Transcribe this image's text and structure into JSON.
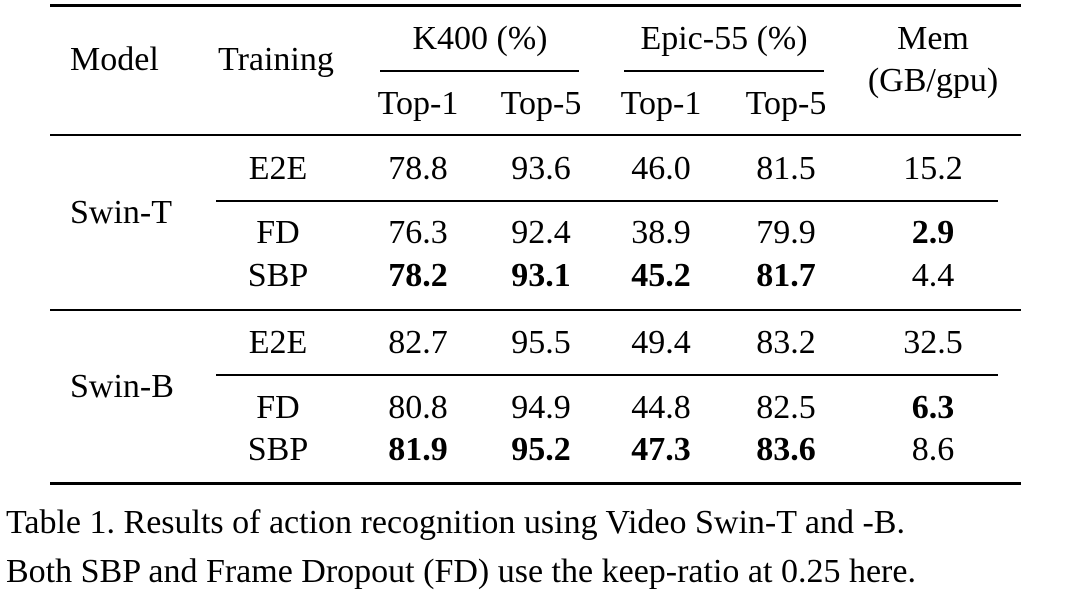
{
  "table": {
    "headers": {
      "model": "Model",
      "training": "Training",
      "k400": "K400 (%)",
      "epic": "Epic-55 (%)",
      "mem_line1": "Mem",
      "mem_line2": "(GB/gpu)",
      "top1": "Top-1",
      "top5": "Top-5"
    },
    "groups": [
      {
        "model": "Swin-T",
        "rows": [
          {
            "training": "E2E",
            "k400_top1": "78.8",
            "k400_top5": "93.6",
            "epic_top1": "46.0",
            "epic_top5": "81.5",
            "mem": "15.2"
          },
          {
            "training": "FD",
            "k400_top1": "76.3",
            "k400_top5": "92.4",
            "epic_top1": "38.9",
            "epic_top5": "79.9",
            "mem": "2.9"
          },
          {
            "training": "SBP",
            "k400_top1": "78.2",
            "k400_top5": "93.1",
            "epic_top1": "45.2",
            "epic_top5": "81.7",
            "mem": "4.4"
          }
        ]
      },
      {
        "model": "Swin-B",
        "rows": [
          {
            "training": "E2E",
            "k400_top1": "82.7",
            "k400_top5": "95.5",
            "epic_top1": "49.4",
            "epic_top5": "83.2",
            "mem": "32.5"
          },
          {
            "training": "FD",
            "k400_top1": "80.8",
            "k400_top5": "94.9",
            "epic_top1": "44.8",
            "epic_top5": "82.5",
            "mem": "6.3"
          },
          {
            "training": "SBP",
            "k400_top1": "81.9",
            "k400_top5": "95.2",
            "epic_top1": "47.3",
            "epic_top5": "83.6",
            "mem": "8.6"
          }
        ]
      }
    ]
  },
  "caption": {
    "line1": "Table 1. Results of action recognition using Video Swin-T and -B.",
    "line2": "Both SBP and Frame Dropout (FD) use the keep-ratio at 0.25 here."
  }
}
